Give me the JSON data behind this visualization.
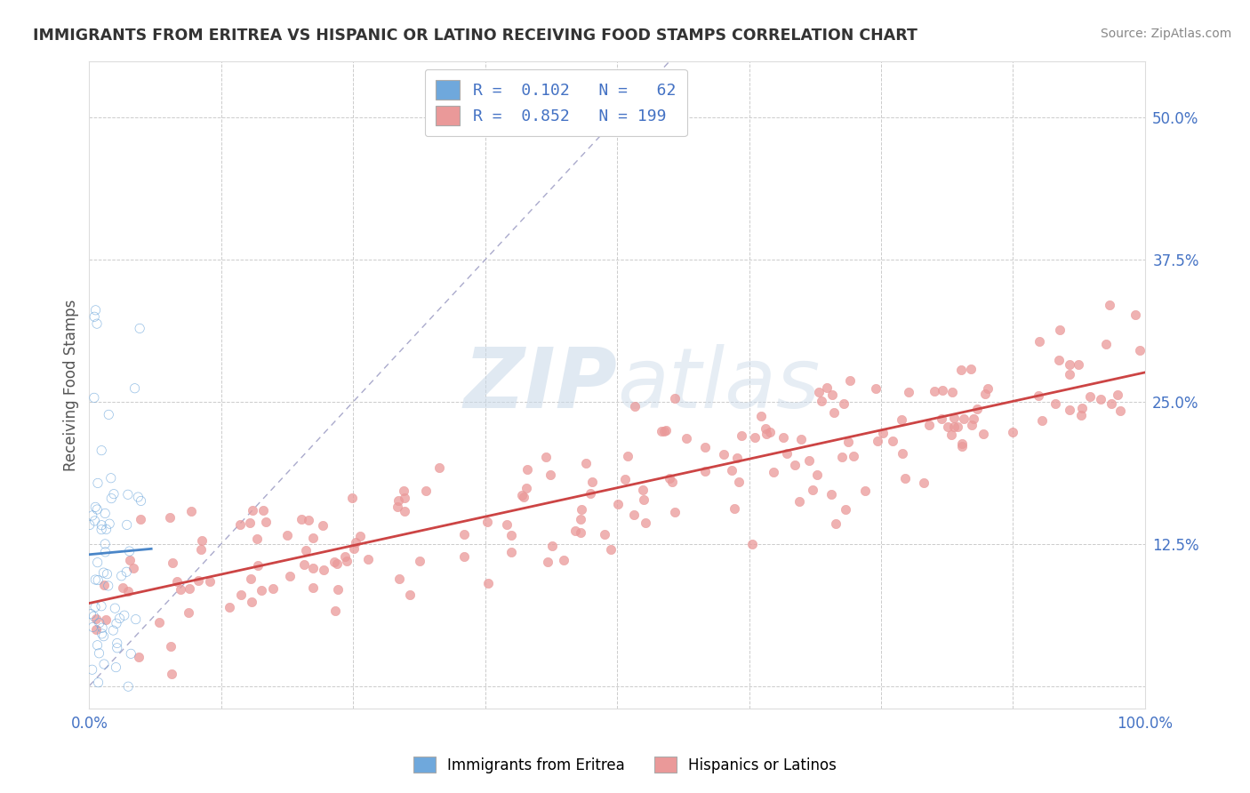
{
  "title": "IMMIGRANTS FROM ERITREA VS HISPANIC OR LATINO RECEIVING FOOD STAMPS CORRELATION CHART",
  "source": "Source: ZipAtlas.com",
  "ylabel": "Receiving Food Stamps",
  "xlim": [
    0.0,
    1.0
  ],
  "ylim": [
    -0.02,
    0.55
  ],
  "xticks": [
    0.0,
    0.125,
    0.25,
    0.375,
    0.5,
    0.625,
    0.75,
    0.875,
    1.0
  ],
  "yticks": [
    0.0,
    0.125,
    0.25,
    0.375,
    0.5
  ],
  "xticklabels": [
    "0.0%",
    "",
    "",
    "",
    "",
    "",
    "",
    "",
    "100.0%"
  ],
  "yticklabels": [
    "",
    "12.5%",
    "25.0%",
    "37.5%",
    "50.0%"
  ],
  "legend_series1": "Immigrants from Eritrea",
  "legend_series2": "Hispanics or Latinos",
  "color_blue": "#6fa8dc",
  "color_pink": "#ea9999",
  "color_blue_line": "#4a86c8",
  "color_pink_line": "#cc4444",
  "color_diag": "#aaaacc",
  "watermark_zip": "ZIP",
  "watermark_atlas": "atlas",
  "R1": 0.102,
  "N1": 62,
  "R2": 0.852,
  "N2": 199,
  "title_color": "#333333",
  "axis_color": "#4472c4",
  "legend_text_color": "#4472c4",
  "background_color": "#ffffff",
  "grid_color": "#cccccc",
  "seed1": 42,
  "seed2": 99
}
